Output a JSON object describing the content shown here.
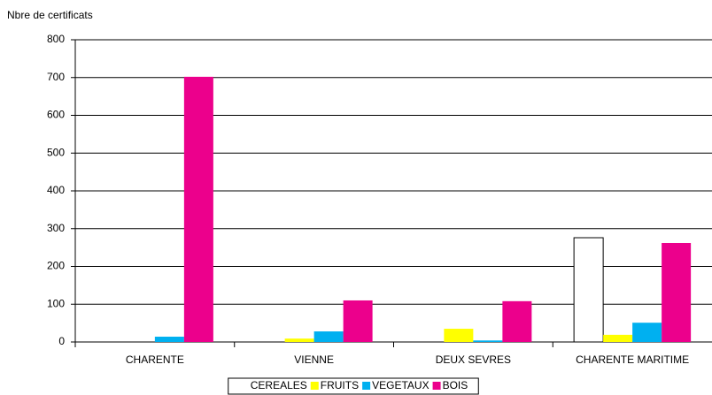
{
  "chart_data": {
    "type": "bar",
    "y_label": "Nbre de certificats",
    "categories": [
      "CHARENTE",
      "VIENNE",
      "DEUX SEVRES",
      "CHARENTE MARITIME"
    ],
    "series": [
      {
        "name": "CEREALES",
        "color": "#ffffff",
        "edgecolor": "#000000",
        "values": [
          0,
          0,
          0,
          276
        ]
      },
      {
        "name": "FRUITS",
        "color": "#ffff00",
        "values": [
          0,
          9,
          35,
          19
        ]
      },
      {
        "name": "VEGETAUX",
        "color": "#00b0f0",
        "values": [
          14,
          28,
          4,
          51
        ]
      },
      {
        "name": "BOIS",
        "color": "#ec008c",
        "values": [
          702,
          110,
          108,
          262
        ]
      }
    ],
    "ylim": [
      0,
      800
    ],
    "yticks": [
      0,
      100,
      200,
      300,
      400,
      500,
      600,
      700,
      800
    ],
    "grid": true,
    "legend": "bottom"
  }
}
